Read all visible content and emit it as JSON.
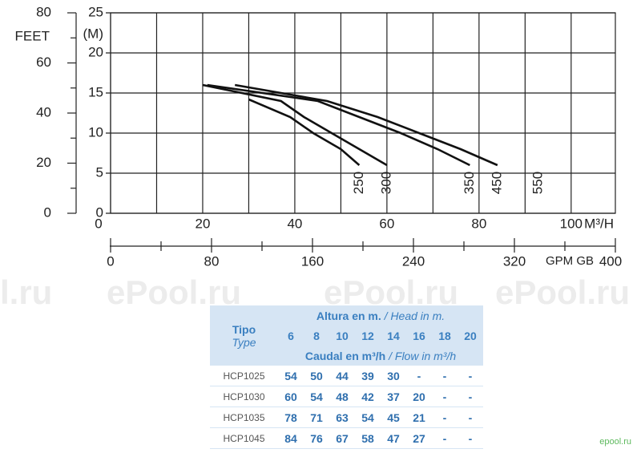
{
  "chart_data": {
    "type": "line",
    "y_label": "(M)",
    "y2_label": "FEET",
    "x_label": "M³/H",
    "x2_label": "GPM GB",
    "xlim": [
      0,
      109.6
    ],
    "xticks": [
      0,
      20,
      40,
      60,
      80,
      100
    ],
    "xminor": [
      10,
      30,
      50,
      70,
      90
    ],
    "ylim": [
      0,
      25
    ],
    "yticks": [
      0,
      5,
      10,
      15,
      20,
      25
    ],
    "y2lim": [
      0,
      80
    ],
    "y2ticks": [
      0,
      20,
      40,
      60,
      80
    ],
    "y2minor": [
      10,
      30,
      50,
      70
    ],
    "x2lim": [
      0,
      400
    ],
    "x2ticks": [
      0,
      80,
      160,
      240,
      320,
      400
    ],
    "x2minor": [
      40,
      120,
      200,
      280,
      360
    ],
    "series": [
      {
        "name": "250",
        "color": "#111111",
        "x": [
          30,
          39,
          44,
          50,
          54
        ],
        "values": [
          14.2,
          12,
          10,
          8,
          6
        ]
      },
      {
        "name": "300",
        "color": "#111111",
        "x": [
          20,
          37,
          42,
          48,
          54,
          60
        ],
        "values": [
          16,
          14,
          12,
          10,
          8,
          6
        ]
      },
      {
        "name": "350",
        "color": "#111111",
        "x": [
          21,
          45,
          54,
          63,
          71,
          78
        ],
        "values": [
          16,
          14,
          12,
          10,
          8,
          6
        ]
      },
      {
        "name": "450",
        "color": "#111111",
        "x": [
          27,
          47,
          58,
          67,
          76,
          84
        ],
        "values": [
          16,
          14,
          12,
          10,
          8,
          6
        ]
      }
    ],
    "annotations": [
      "550"
    ]
  },
  "watermarks": [
    "l.ru",
    "ePool.ru",
    "ePool.ru",
    "ePool.ru"
  ],
  "corner": "epool.ru",
  "table": {
    "type_es": "Tipo",
    "type_en": "Type",
    "head_es": "Altura en m.",
    "head_en": "/ Head in m.",
    "heads": [
      6,
      8,
      10,
      12,
      14,
      16,
      18,
      20
    ],
    "flow_es": "Caudal en m³/h",
    "flow_en": "/ Flow in m³/h",
    "rows": [
      {
        "model": "HCP1025",
        "flows": [
          54,
          50,
          44,
          39,
          30,
          "-",
          "-",
          "-"
        ]
      },
      {
        "model": "HCP1030",
        "flows": [
          60,
          54,
          48,
          42,
          37,
          20,
          "-",
          "-"
        ]
      },
      {
        "model": "HCP1035",
        "flows": [
          78,
          71,
          63,
          54,
          45,
          21,
          "-",
          "-"
        ]
      },
      {
        "model": "HCP1045",
        "flows": [
          84,
          76,
          67,
          58,
          47,
          27,
          "-",
          "-"
        ]
      }
    ]
  }
}
